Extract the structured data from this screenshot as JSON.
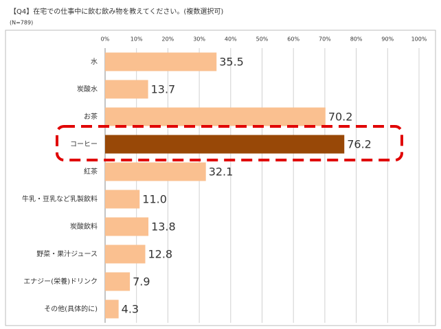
{
  "chart_data": {
    "type": "bar",
    "orientation": "horizontal",
    "title": "【Q4】在宅での仕事中に飲む飲み物を教えてください。(複数選択可)",
    "subtitle": "(N=789)",
    "categories": [
      "水",
      "炭酸水",
      "お茶",
      "コーヒー",
      "紅茶",
      "牛乳・豆乳など乳製飲料",
      "炭酸飲料",
      "野菜・果汁ジュース",
      "エナジー(栄養)ドリンク",
      "その他(具体的に)"
    ],
    "values": [
      35.5,
      13.7,
      70.2,
      76.2,
      32.1,
      11.0,
      13.8,
      12.8,
      7.9,
      4.3
    ],
    "value_labels": [
      "35.5",
      "13.7",
      "70.2",
      "76.2",
      "32.1",
      "11.0",
      "13.8",
      "12.8",
      "7.9",
      "4.3"
    ],
    "colors": [
      "#fac090",
      "#fac090",
      "#fac090",
      "#984807",
      "#fac090",
      "#fac090",
      "#fac090",
      "#fac090",
      "#fac090",
      "#fac090"
    ],
    "xlim": [
      0,
      100
    ],
    "xticks": [
      {
        "value": 0,
        "label": "0%"
      },
      {
        "value": 10,
        "label": "10%"
      },
      {
        "value": 20,
        "label": "20%"
      },
      {
        "value": 30,
        "label": "30%"
      },
      {
        "value": 40,
        "label": "40%"
      },
      {
        "value": 50,
        "label": "50%"
      },
      {
        "value": 60,
        "label": "60%"
      },
      {
        "value": 70,
        "label": "70%"
      },
      {
        "value": 80,
        "label": "80%"
      },
      {
        "value": 90,
        "label": "90%"
      },
      {
        "value": 100,
        "label": "100%"
      }
    ],
    "grid": true
  }
}
